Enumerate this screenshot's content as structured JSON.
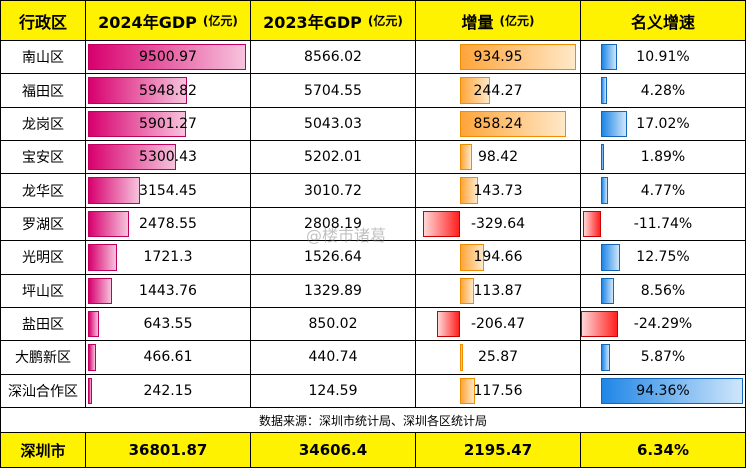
{
  "header": {
    "district": "行政区",
    "gdp2024": "2024年GDP",
    "gdp2023": "2023年GDP",
    "increase": "增量",
    "growth": "名义增速",
    "unit": "(亿元)"
  },
  "rows": [
    {
      "district": "南山区",
      "gdp2024": "9500.97",
      "gdp2023": "8566.02",
      "increase": "934.95",
      "growth": "10.91%",
      "v2024": 9500.97,
      "vinc": 934.95,
      "vgr": 10.91
    },
    {
      "district": "福田区",
      "gdp2024": "5948.82",
      "gdp2023": "5704.55",
      "increase": "244.27",
      "growth": "4.28%",
      "v2024": 5948.82,
      "vinc": 244.27,
      "vgr": 4.28
    },
    {
      "district": "龙岗区",
      "gdp2024": "5901.27",
      "gdp2023": "5043.03",
      "increase": "858.24",
      "growth": "17.02%",
      "v2024": 5901.27,
      "vinc": 858.24,
      "vgr": 17.02
    },
    {
      "district": "宝安区",
      "gdp2024": "5300.43",
      "gdp2023": "5202.01",
      "increase": "98.42",
      "growth": "1.89%",
      "v2024": 5300.43,
      "vinc": 98.42,
      "vgr": 1.89
    },
    {
      "district": "龙华区",
      "gdp2024": "3154.45",
      "gdp2023": "3010.72",
      "increase": "143.73",
      "growth": "4.77%",
      "v2024": 3154.45,
      "vinc": 143.73,
      "vgr": 4.77
    },
    {
      "district": "罗湖区",
      "gdp2024": "2478.55",
      "gdp2023": "2808.19",
      "increase": "-329.64",
      "growth": "-11.74%",
      "v2024": 2478.55,
      "vinc": -329.64,
      "vgr": -11.74
    },
    {
      "district": "光明区",
      "gdp2024": "1721.3",
      "gdp2023": "1526.64",
      "increase": "194.66",
      "growth": "12.75%",
      "v2024": 1721.3,
      "vinc": 194.66,
      "vgr": 12.75
    },
    {
      "district": "坪山区",
      "gdp2024": "1443.76",
      "gdp2023": "1329.89",
      "increase": "113.87",
      "growth": "8.56%",
      "v2024": 1443.76,
      "vinc": 113.87,
      "vgr": 8.56
    },
    {
      "district": "盐田区",
      "gdp2024": "643.55",
      "gdp2023": "850.02",
      "increase": "-206.47",
      "growth": "-24.29%",
      "v2024": 643.55,
      "vinc": -206.47,
      "vgr": -24.29
    },
    {
      "district": "大鹏新区",
      "gdp2024": "466.61",
      "gdp2023": "440.74",
      "increase": "25.87",
      "growth": "5.87%",
      "v2024": 466.61,
      "vinc": 25.87,
      "vgr": 5.87
    },
    {
      "district": "深汕合作区",
      "gdp2024": "242.15",
      "gdp2023": "124.59",
      "increase": "117.56",
      "growth": "94.36%",
      "v2024": 242.15,
      "vinc": 117.56,
      "vgr": 94.36
    }
  ],
  "source": "数据来源：深圳市统计局、深圳各区统计局",
  "total": {
    "district": "深圳市",
    "gdp2024": "36801.87",
    "gdp2023": "34606.4",
    "increase": "2195.47",
    "growth": "6.34%"
  },
  "watermark": "@楼市诸葛",
  "colors": {
    "header_bg": "#fff200",
    "gdp_bar": "#d8006e",
    "inc_bar": "#ffa53a",
    "neg_bar": "#ff2020",
    "growth_bar": "#1f86e6"
  }
}
